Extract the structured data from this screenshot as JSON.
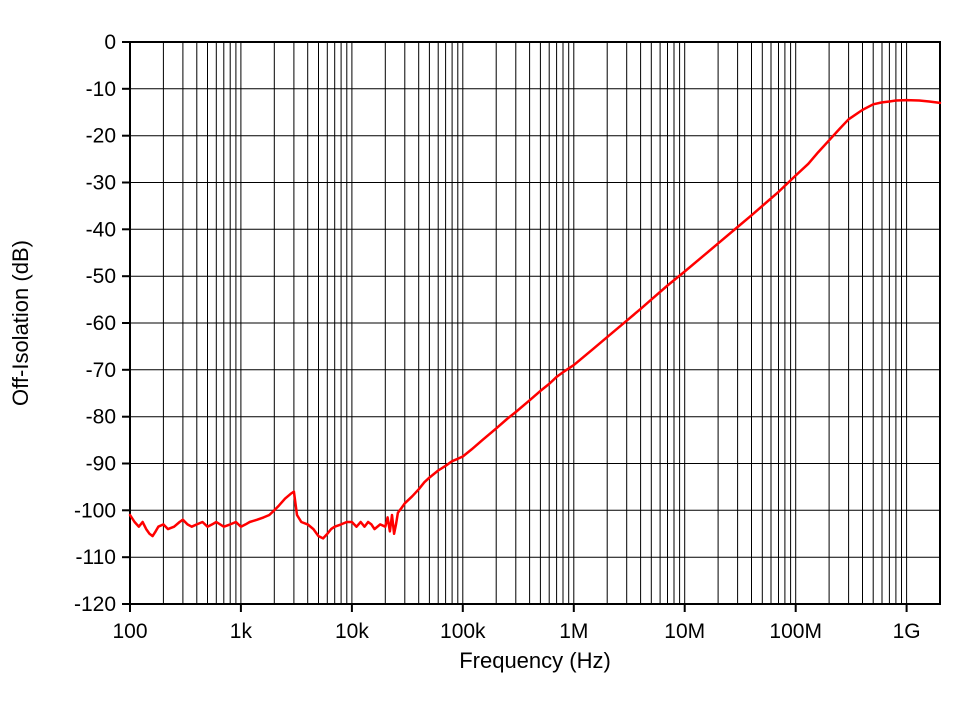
{
  "chart_data": {
    "type": "line",
    "title": "",
    "xlabel": "Frequency (Hz)",
    "ylabel": "Off-Isolation (dB)",
    "x_scale": "log",
    "x_range": [
      100,
      2000000000
    ],
    "y_range": [
      -120,
      0
    ],
    "y_tick_step": 10,
    "x_tick_values": [
      100,
      1000,
      10000,
      100000,
      1000000,
      10000000,
      100000000,
      1000000000
    ],
    "x_tick_labels": [
      "100",
      "1k",
      "10k",
      "100k",
      "1M",
      "10M",
      "100M",
      "1G"
    ],
    "y_tick_values": [
      0,
      -10,
      -20,
      -30,
      -40,
      -50,
      -60,
      -70,
      -80,
      -90,
      -100,
      -110,
      -120
    ],
    "y_tick_labels": [
      "0",
      "-10",
      "-20",
      "-30",
      "-40",
      "-50",
      "-60",
      "-70",
      "-80",
      "-90",
      "-100",
      "-110",
      "-120"
    ],
    "grid": "on",
    "legend": "none",
    "line_color": "#ff0000",
    "series": [
      {
        "name": "off-isolation",
        "points": [
          [
            100,
            -101
          ],
          [
            110,
            -102.5
          ],
          [
            120,
            -103.5
          ],
          [
            130,
            -102.5
          ],
          [
            140,
            -104
          ],
          [
            150,
            -105
          ],
          [
            160,
            -105.5
          ],
          [
            170,
            -104.5
          ],
          [
            180,
            -103.5
          ],
          [
            200,
            -103
          ],
          [
            220,
            -104
          ],
          [
            250,
            -103.5
          ],
          [
            280,
            -102.5
          ],
          [
            300,
            -102
          ],
          [
            330,
            -103
          ],
          [
            360,
            -103.5
          ],
          [
            400,
            -103
          ],
          [
            450,
            -102.5
          ],
          [
            500,
            -103.5
          ],
          [
            550,
            -103
          ],
          [
            600,
            -102.5
          ],
          [
            700,
            -103.5
          ],
          [
            800,
            -103
          ],
          [
            900,
            -102.5
          ],
          [
            1000,
            -103.5
          ],
          [
            1100,
            -103
          ],
          [
            1200,
            -102.5
          ],
          [
            1400,
            -102
          ],
          [
            1600,
            -101.5
          ],
          [
            1800,
            -101
          ],
          [
            2000,
            -100
          ],
          [
            2200,
            -99
          ],
          [
            2500,
            -97.5
          ],
          [
            2800,
            -96.5
          ],
          [
            3000,
            -96
          ],
          [
            3200,
            -101
          ],
          [
            3500,
            -102.5
          ],
          [
            4000,
            -103
          ],
          [
            4500,
            -104
          ],
          [
            5000,
            -105.5
          ],
          [
            5500,
            -106
          ],
          [
            6000,
            -105
          ],
          [
            6500,
            -104
          ],
          [
            7000,
            -103.5
          ],
          [
            8000,
            -103
          ],
          [
            9000,
            -102.5
          ],
          [
            10000,
            -102.5
          ],
          [
            11000,
            -103.5
          ],
          [
            12000,
            -102.5
          ],
          [
            13000,
            -103.5
          ],
          [
            14000,
            -102.5
          ],
          [
            15000,
            -103
          ],
          [
            16000,
            -104
          ],
          [
            18000,
            -103
          ],
          [
            20000,
            -103.5
          ],
          [
            21000,
            -101.5
          ],
          [
            22000,
            -104.5
          ],
          [
            23000,
            -101
          ],
          [
            24000,
            -105
          ],
          [
            25000,
            -103
          ],
          [
            26000,
            -100.5
          ],
          [
            28000,
            -99.5
          ],
          [
            30000,
            -98.5
          ],
          [
            35000,
            -97
          ],
          [
            40000,
            -95.5
          ],
          [
            45000,
            -94
          ],
          [
            50000,
            -93
          ],
          [
            60000,
            -91.5
          ],
          [
            70000,
            -90.5
          ],
          [
            80000,
            -89.5
          ],
          [
            90000,
            -89
          ],
          [
            100000,
            -88.5
          ],
          [
            120000,
            -87
          ],
          [
            150000,
            -85
          ],
          [
            200000,
            -82.5
          ],
          [
            250000,
            -80.5
          ],
          [
            300000,
            -79
          ],
          [
            400000,
            -76.5
          ],
          [
            500000,
            -74.5
          ],
          [
            600000,
            -73
          ],
          [
            700000,
            -71.5
          ],
          [
            800000,
            -70.5
          ],
          [
            1000000,
            -69
          ],
          [
            1500000,
            -65.5
          ],
          [
            2000000,
            -63
          ],
          [
            3000000,
            -59.5
          ],
          [
            4000000,
            -57
          ],
          [
            5000000,
            -55
          ],
          [
            7000000,
            -52
          ],
          [
            10000000,
            -49
          ],
          [
            15000000,
            -45.5
          ],
          [
            20000000,
            -43
          ],
          [
            30000000,
            -39.5
          ],
          [
            40000000,
            -37
          ],
          [
            50000000,
            -35
          ],
          [
            70000000,
            -32
          ],
          [
            100000000,
            -28.5
          ],
          [
            130000000,
            -26
          ],
          [
            160000000,
            -23.5
          ],
          [
            200000000,
            -21
          ],
          [
            250000000,
            -18.5
          ],
          [
            300000000,
            -16.5
          ],
          [
            400000000,
            -14.5
          ],
          [
            500000000,
            -13.3
          ],
          [
            600000000,
            -12.9
          ],
          [
            700000000,
            -12.7
          ],
          [
            800000000,
            -12.5
          ],
          [
            1000000000,
            -12.4
          ],
          [
            1300000000,
            -12.5
          ],
          [
            1600000000,
            -12.7
          ],
          [
            2000000000,
            -13
          ]
        ]
      }
    ]
  }
}
